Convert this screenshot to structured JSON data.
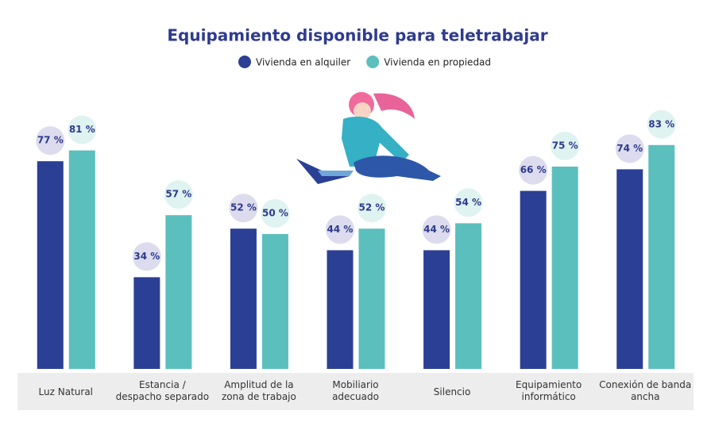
{
  "chart_data": {
    "type": "bar",
    "title": "Equipamiento disponible para teletrabajar",
    "categories": [
      "Luz Natural",
      "Estancia / despacho separado",
      "Amplitud de la zona de trabajo",
      "Mobiliario adecuado",
      "Silencio",
      "Equipamiento informático",
      "Conexión de banda ancha"
    ],
    "series": [
      {
        "name": "Vivienda en alquiler",
        "color": "#2b3f95",
        "values": [
          77,
          34,
          52,
          44,
          44,
          66,
          74
        ],
        "value_labels": [
          "77 %",
          "34 %",
          "52 %",
          "44 %",
          "44 %",
          "66 %",
          "74 %"
        ]
      },
      {
        "name": "Vivienda en propiedad",
        "color": "#5bbfbd",
        "values": [
          81,
          57,
          50,
          52,
          54,
          75,
          83
        ],
        "value_labels": [
          "81 %",
          "57 %",
          "50 %",
          "52 %",
          "54 %",
          "75 %",
          "83 %"
        ]
      }
    ]
  }
}
